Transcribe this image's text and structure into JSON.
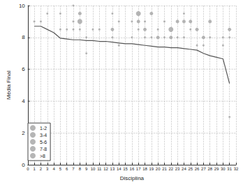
{
  "chart_data": {
    "type": "scatter",
    "x_label": "Disciplina",
    "y_label": "Média Final",
    "xlim": [
      0,
      32
    ],
    "xticks": [
      0,
      1,
      2,
      3,
      4,
      5,
      6,
      7,
      8,
      9,
      10,
      11,
      12,
      13,
      14,
      15,
      16,
      17,
      18,
      19,
      20,
      21,
      22,
      23,
      24,
      25,
      26,
      27,
      28,
      29,
      30,
      31,
      32
    ],
    "ylim": [
      0,
      10
    ],
    "yticks": [
      0,
      2,
      4,
      6,
      8,
      10
    ],
    "grid": true,
    "legend": "bottom-left",
    "series": [
      {
        "name": "1-2",
        "type": "scatter",
        "color": "#a8a8a8",
        "x": [
          1,
          2,
          3,
          5,
          5,
          6,
          7,
          7,
          7,
          8,
          9,
          9,
          10,
          11,
          13,
          13,
          14,
          14,
          16,
          16,
          17,
          18,
          18,
          19,
          20,
          21,
          21,
          23,
          24,
          24,
          25,
          26,
          27,
          28,
          30,
          30,
          31,
          31
        ],
        "values": [
          9,
          9,
          9.5,
          9.5,
          8.5,
          8.5,
          10,
          9,
          8.5,
          8.5,
          8,
          7,
          8.5,
          8.5,
          9.5,
          8,
          9,
          7.5,
          9,
          8,
          8.5,
          9,
          8,
          8,
          8.5,
          9,
          8,
          8,
          9.5,
          8,
          8.5,
          7.5,
          7.5,
          8,
          8,
          7.5,
          8,
          3
        ]
      },
      {
        "name": "3-4",
        "type": "scatter",
        "color": "#a8a8a8",
        "x": [
          8,
          13,
          17,
          18,
          19,
          20,
          22,
          23,
          24,
          25,
          26,
          27,
          28,
          31
        ],
        "values": [
          9.5,
          8.5,
          9,
          8.5,
          9.5,
          8,
          8,
          9,
          9,
          9,
          8.5,
          8,
          9,
          8.5
        ]
      },
      {
        "name": "5-6",
        "type": "scatter",
        "color": "#a8a8a8",
        "x": [
          8,
          17,
          22
        ],
        "values": [
          9,
          9.5,
          8.5
        ]
      },
      {
        "name": "7-8",
        "type": "scatter",
        "color": "#a8a8a8",
        "x": [],
        "values": []
      },
      {
        "name": ">8",
        "type": "scatter",
        "color": "#a8a8a8",
        "x": [],
        "values": []
      },
      {
        "type": "line",
        "color": "#555555",
        "x": [
          1,
          2,
          3,
          4,
          5,
          6,
          7,
          8,
          9,
          10,
          11,
          12,
          13,
          14,
          15,
          16,
          17,
          18,
          19,
          20,
          21,
          22,
          23,
          24,
          25,
          26,
          27,
          28,
          29,
          30,
          31
        ],
        "values": [
          8.7,
          8.7,
          8.5,
          8.3,
          7.95,
          7.9,
          7.85,
          7.85,
          7.8,
          7.8,
          7.75,
          7.75,
          7.7,
          7.65,
          7.6,
          7.6,
          7.55,
          7.5,
          7.45,
          7.4,
          7.4,
          7.35,
          7.35,
          7.3,
          7.25,
          7.2,
          7.0,
          6.85,
          6.75,
          6.65,
          5.1
        ]
      }
    ]
  }
}
